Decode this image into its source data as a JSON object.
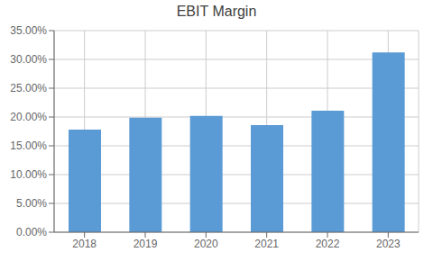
{
  "chart_data": {
    "type": "bar",
    "title": "EBIT Margin",
    "categories": [
      "2018",
      "2019",
      "2020",
      "2021",
      "2022",
      "2023"
    ],
    "values": [
      0.178,
      0.199,
      0.202,
      0.186,
      0.211,
      0.312
    ],
    "color": "#5B9BD5",
    "ylim": [
      0,
      0.35
    ],
    "yticks": [
      {
        "value": 0,
        "label": "0.00%"
      },
      {
        "value": 0.05,
        "label": "5.00%"
      },
      {
        "value": 0.1,
        "label": "10.00%"
      },
      {
        "value": 0.15,
        "label": "15.00%"
      },
      {
        "value": 0.2,
        "label": "20.00%"
      },
      {
        "value": 0.25,
        "label": "25.00%"
      },
      {
        "value": 0.3,
        "label": "30.00%"
      },
      {
        "value": 0.35,
        "label": "35.00%"
      }
    ],
    "grid": true
  }
}
